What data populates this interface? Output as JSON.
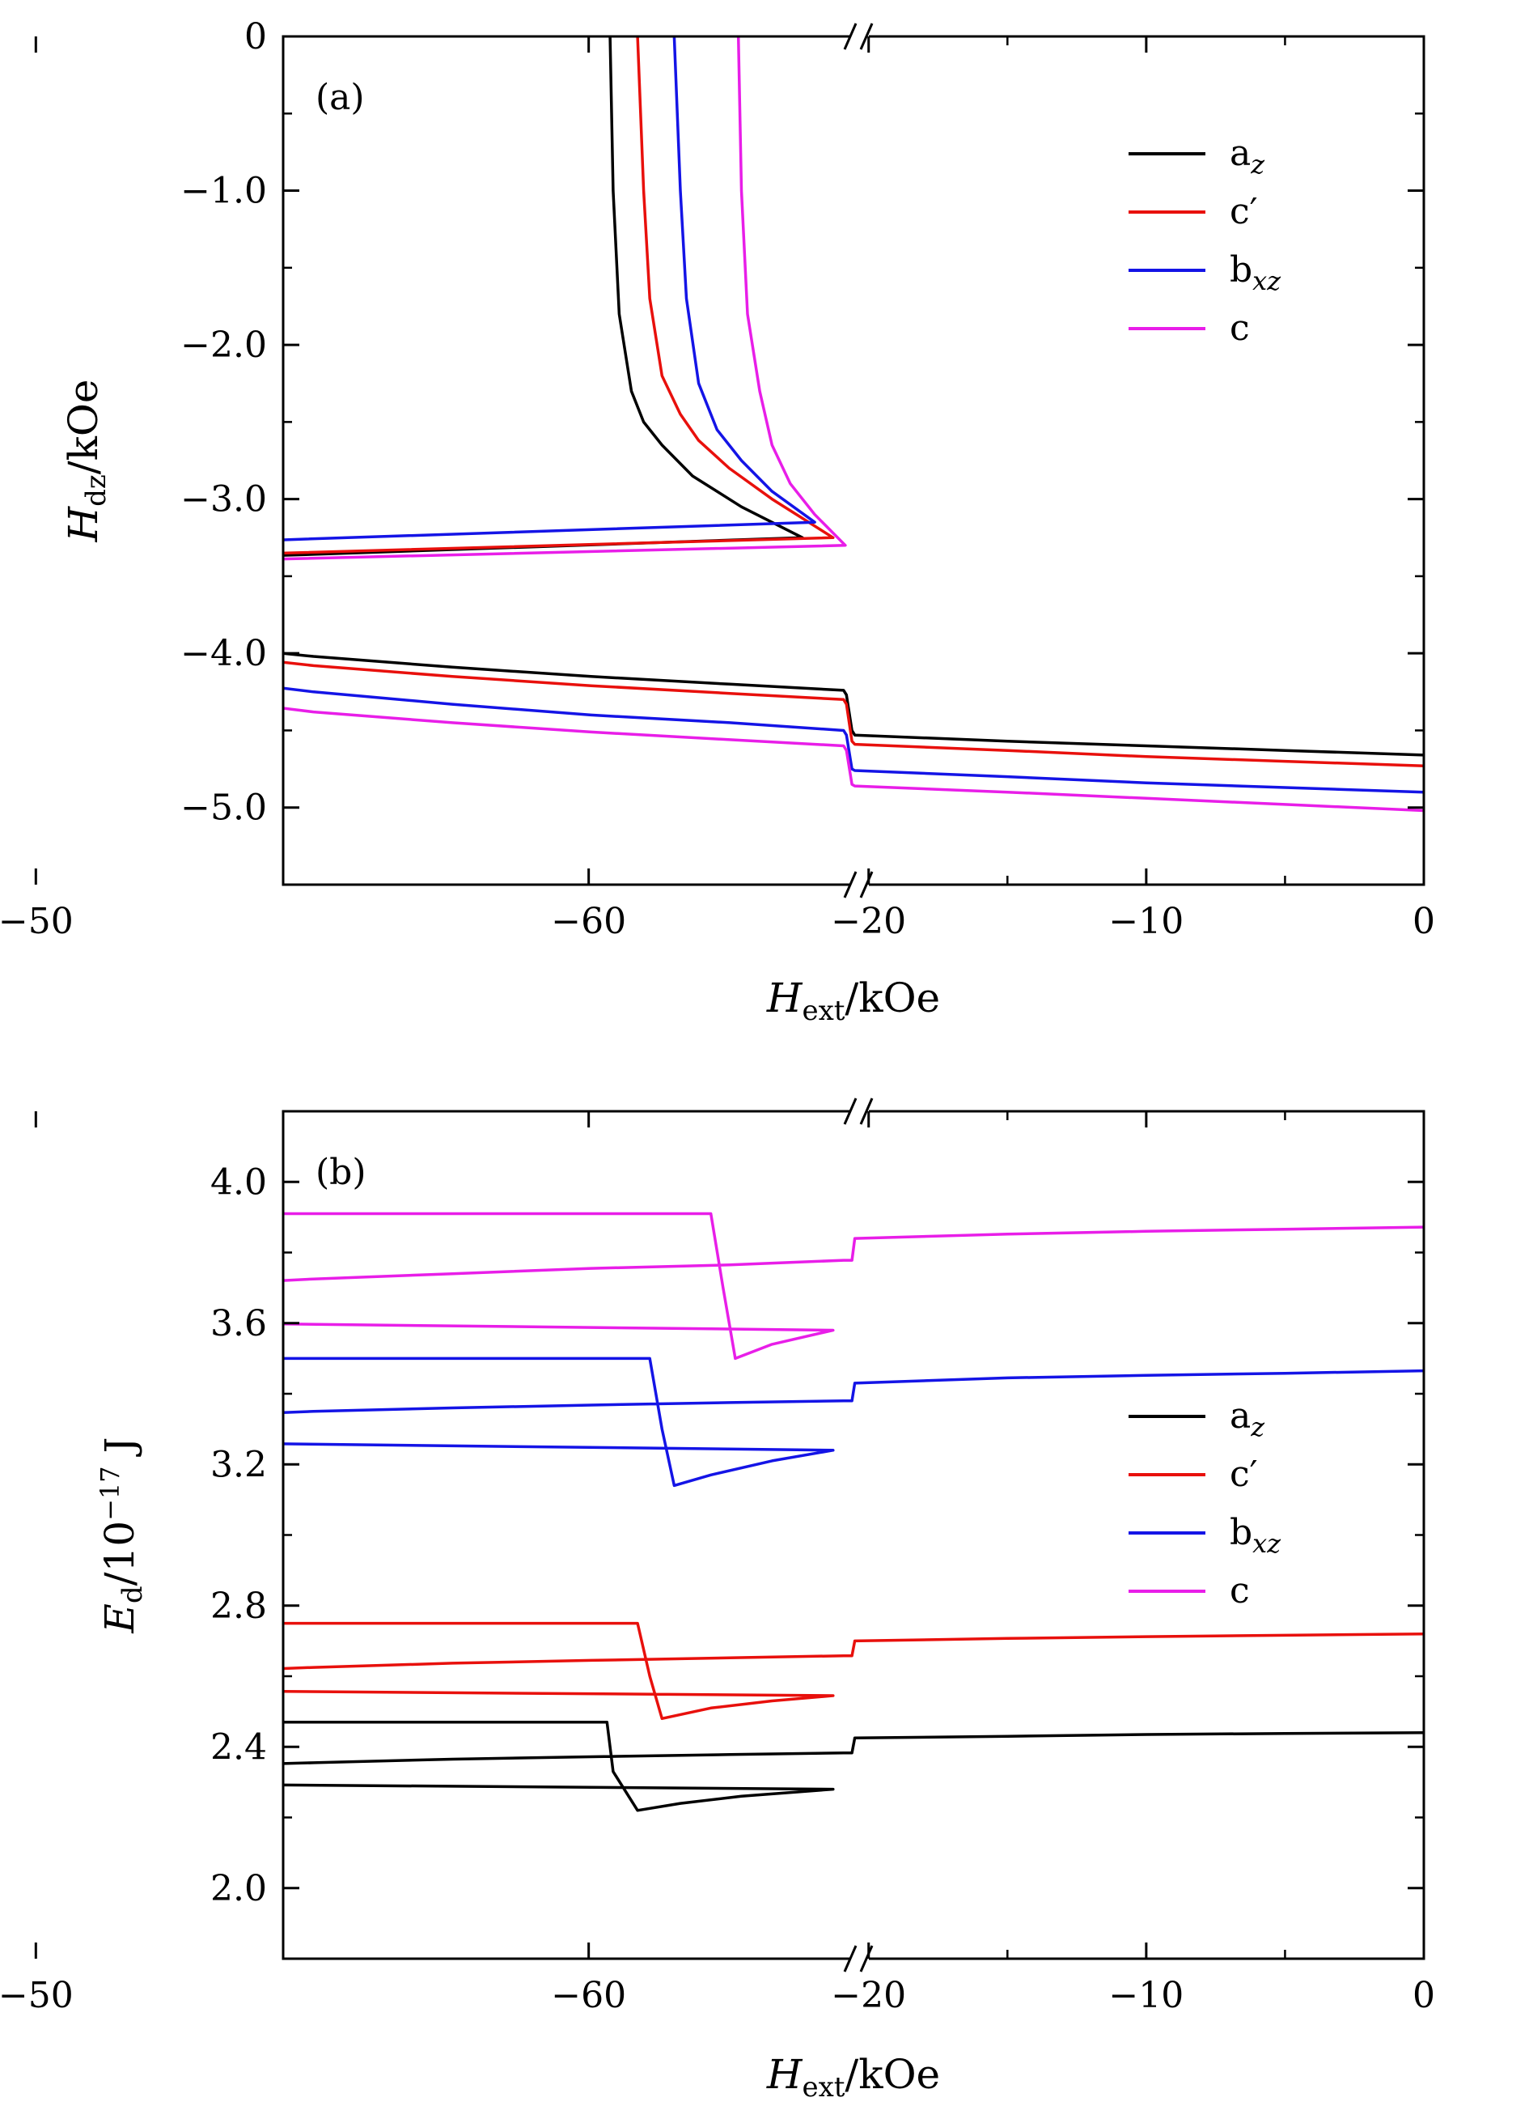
{
  "chart_data": [
    {
      "panel_label": "(a)",
      "type": "line",
      "xlabel": "H_ext/kOe",
      "xlabel_main": "H",
      "xlabel_sub": "ext",
      "xlabel_unit": "/kOe",
      "ylabel": "H_dz/kOe",
      "ylabel_main": "H",
      "ylabel_sub": "dz",
      "ylabel_unit": "/kOe",
      "broken_x_axis": true,
      "x_segments": [
        {
          "xlim": [
            -65,
            -55.6
          ],
          "ticks": [
            -60,
            -50
          ]
        },
        {
          "xlim": [
            -20.4,
            0
          ],
          "ticks": [
            -20,
            -10,
            0
          ]
        }
      ],
      "ylim": [
        -5.5,
        0
      ],
      "yticks": [
        0,
        -1.0,
        -2.0,
        -3.0,
        -4.0,
        -5.0
      ],
      "ytick_labels": [
        "0",
        "−1.0",
        "−2.0",
        "−3.0",
        "−4.0",
        "−5.0"
      ],
      "xtick_labels": [
        "−60",
        "−50",
        "−20",
        "−10",
        "0"
      ],
      "grid": false,
      "legend_position": "top-right",
      "series": [
        {
          "name": "a_z",
          "color": "#000000",
          "x": [
            -59.65,
            -59.6,
            -59.5,
            -59.3,
            -59.1,
            -58.8,
            -58.3,
            -57.5,
            -56.5,
            -55,
            -53,
            -51,
            -48,
            -45,
            -40,
            -35,
            -30,
            -25,
            -20.9,
            -20.8,
            -20.6,
            -20.5,
            -15,
            -10,
            -5,
            0
          ],
          "y": [
            0,
            -1.0,
            -1.8,
            -2.3,
            -2.5,
            -2.65,
            -2.85,
            -3.05,
            -3.25,
            -3.45,
            -3.6,
            -3.72,
            -3.85,
            -3.93,
            -4.02,
            -4.09,
            -4.15,
            -4.2,
            -4.24,
            -4.27,
            -4.5,
            -4.53,
            -4.57,
            -4.6,
            -4.63,
            -4.66
          ]
        },
        {
          "name": "c′",
          "color": "#e8100c",
          "x": [
            -59.2,
            -59.1,
            -59.0,
            -58.8,
            -58.5,
            -58.2,
            -57.7,
            -57,
            -56,
            -55,
            -53,
            -51,
            -48,
            -45,
            -40,
            -35,
            -30,
            -25,
            -20.9,
            -20.8,
            -20.6,
            -20.5,
            -15,
            -10,
            -5,
            0
          ],
          "y": [
            0,
            -1.0,
            -1.7,
            -2.2,
            -2.45,
            -2.62,
            -2.8,
            -3.0,
            -3.25,
            -3.42,
            -3.62,
            -3.76,
            -3.9,
            -3.98,
            -4.08,
            -4.15,
            -4.21,
            -4.26,
            -4.3,
            -4.33,
            -4.57,
            -4.59,
            -4.63,
            -4.67,
            -4.7,
            -4.73
          ]
        },
        {
          "name": "b_xz",
          "color": "#1414e6",
          "x": [
            -58.6,
            -58.5,
            -58.4,
            -58.2,
            -57.9,
            -57.5,
            -57,
            -56.3,
            -55.5,
            -55,
            -53,
            -51,
            -48,
            -45,
            -40,
            -35,
            -30,
            -25,
            -20.9,
            -20.8,
            -20.6,
            -20.5,
            -15,
            -10,
            -5,
            0
          ],
          "y": [
            0,
            -1.0,
            -1.7,
            -2.25,
            -2.55,
            -2.75,
            -2.95,
            -3.15,
            -3.35,
            -3.47,
            -3.72,
            -3.9,
            -4.05,
            -4.14,
            -4.25,
            -4.33,
            -4.4,
            -4.45,
            -4.5,
            -4.53,
            -4.75,
            -4.76,
            -4.8,
            -4.84,
            -4.87,
            -4.9
          ]
        },
        {
          "name": "c",
          "color": "#e81ee8",
          "x": [
            -57.55,
            -57.5,
            -57.4,
            -57.2,
            -57.0,
            -56.7,
            -56.3,
            -55.8,
            -55.2,
            -55,
            -53,
            -51,
            -48,
            -45,
            -40,
            -35,
            -30,
            -25,
            -20.9,
            -20.8,
            -20.6,
            -20.5,
            -15,
            -10,
            -5,
            0
          ],
          "y": [
            0,
            -1.0,
            -1.8,
            -2.3,
            -2.65,
            -2.9,
            -3.1,
            -3.3,
            -3.45,
            -3.5,
            -3.78,
            -3.97,
            -4.15,
            -4.27,
            -4.38,
            -4.45,
            -4.51,
            -4.56,
            -4.6,
            -4.63,
            -4.85,
            -4.86,
            -4.9,
            -4.94,
            -4.98,
            -5.02
          ]
        }
      ]
    },
    {
      "panel_label": "(b)",
      "type": "line",
      "xlabel": "H_ext/kOe",
      "xlabel_main": "H",
      "xlabel_sub": "ext",
      "xlabel_unit": "/kOe",
      "ylabel": "E_d/10^-17 J",
      "ylabel_main": "E",
      "ylabel_sub": "d",
      "ylabel_unit": "/10",
      "ylabel_exp": "−17",
      "ylabel_tail": " J",
      "broken_x_axis": true,
      "x_segments": [
        {
          "xlim": [
            -65,
            -55.6
          ],
          "ticks": [
            -60,
            -50
          ]
        },
        {
          "xlim": [
            -20.4,
            0
          ],
          "ticks": [
            -20,
            -10,
            0
          ]
        }
      ],
      "ylim": [
        1.8,
        4.2
      ],
      "yticks": [
        2.0,
        2.4,
        2.8,
        3.2,
        3.6,
        4.0
      ],
      "ytick_labels": [
        "2.0",
        "2.4",
        "2.8",
        "3.2",
        "3.6",
        "4.0"
      ],
      "xtick_labels": [
        "−60",
        "−50",
        "−20",
        "−10",
        "0"
      ],
      "grid": false,
      "legend_position": "center-right",
      "series": [
        {
          "name": "a_z",
          "color": "#000000",
          "x": [
            -65,
            -59.7,
            -59.6,
            -59.2,
            -58.5,
            -57.5,
            -56,
            -54,
            -51,
            -48,
            -45,
            -40,
            -35,
            -30,
            -25,
            -20.9,
            -20.6,
            -20.5,
            -15,
            -10,
            -5,
            0
          ],
          "y": [
            2.47,
            2.47,
            2.33,
            2.22,
            2.24,
            2.26,
            2.28,
            2.3,
            2.32,
            2.335,
            2.345,
            2.355,
            2.365,
            2.372,
            2.378,
            2.383,
            2.383,
            2.425,
            2.43,
            2.435,
            2.438,
            2.44
          ]
        },
        {
          "name": "c′",
          "color": "#e8100c",
          "x": [
            -65,
            -59.2,
            -59.0,
            -58.8,
            -58,
            -57,
            -56,
            -54,
            -51,
            -48,
            -45,
            -40,
            -35,
            -30,
            -25,
            -20.9,
            -20.6,
            -20.5,
            -15,
            -10,
            -5,
            0
          ],
          "y": [
            2.75,
            2.75,
            2.6,
            2.48,
            2.51,
            2.53,
            2.545,
            2.565,
            2.585,
            2.6,
            2.61,
            2.625,
            2.637,
            2.645,
            2.652,
            2.658,
            2.658,
            2.7,
            2.707,
            2.712,
            2.716,
            2.72
          ]
        },
        {
          "name": "b_xz",
          "color": "#1414e6",
          "x": [
            -65,
            -59.0,
            -58.8,
            -58.6,
            -58,
            -57,
            -56,
            -54,
            -51,
            -48,
            -45,
            -40,
            -35,
            -30,
            -25,
            -20.9,
            -20.6,
            -20.5,
            -15,
            -10,
            -5,
            0
          ],
          "y": [
            3.5,
            3.5,
            3.3,
            3.14,
            3.17,
            3.21,
            3.24,
            3.27,
            3.3,
            3.32,
            3.335,
            3.35,
            3.36,
            3.368,
            3.375,
            3.38,
            3.38,
            3.43,
            3.445,
            3.452,
            3.458,
            3.465
          ]
        },
        {
          "name": "c",
          "color": "#e81ee8",
          "x": [
            -65,
            -58.0,
            -57.8,
            -57.6,
            -57,
            -56,
            -55,
            -53,
            -51,
            -48,
            -45,
            -40,
            -35,
            -30,
            -25,
            -20.9,
            -20.6,
            -20.5,
            -15,
            -10,
            -5,
            0
          ],
          "y": [
            3.91,
            3.91,
            3.7,
            3.5,
            3.54,
            3.58,
            3.61,
            3.645,
            3.665,
            3.69,
            3.705,
            3.725,
            3.74,
            3.755,
            3.765,
            3.778,
            3.778,
            3.84,
            3.852,
            3.86,
            3.866,
            3.872
          ]
        }
      ]
    }
  ]
}
